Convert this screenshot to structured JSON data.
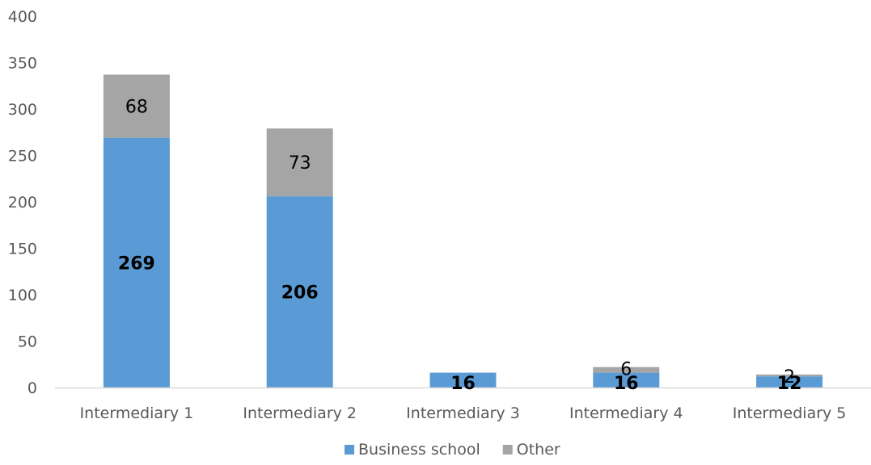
{
  "chart_data": {
    "type": "bar",
    "stacked": true,
    "categories": [
      "Intermediary 1",
      "Intermediary 2",
      "Intermediary 3",
      "Intermediary 4",
      "Intermediary 5"
    ],
    "series": [
      {
        "name": "Business school",
        "values": [
          269,
          206,
          16,
          16,
          12
        ],
        "labels": [
          "269",
          "206",
          "16",
          "16",
          "12"
        ],
        "color": "#5b9bd5"
      },
      {
        "name": "Other",
        "values": [
          68,
          73,
          0,
          6,
          2
        ],
        "labels": [
          "68",
          "73",
          "",
          "6",
          "2"
        ],
        "color": "#a5a5a5"
      }
    ],
    "ylim": [
      0,
      400
    ],
    "yticks": [
      0,
      50,
      100,
      150,
      200,
      250,
      300,
      350,
      400
    ],
    "ytick_labels": [
      "0",
      "50",
      "100",
      "150",
      "200",
      "250",
      "300",
      "350",
      "400"
    ],
    "title": "",
    "xlabel": "",
    "ylabel": "",
    "grid": false,
    "legend_position": "bottom"
  }
}
